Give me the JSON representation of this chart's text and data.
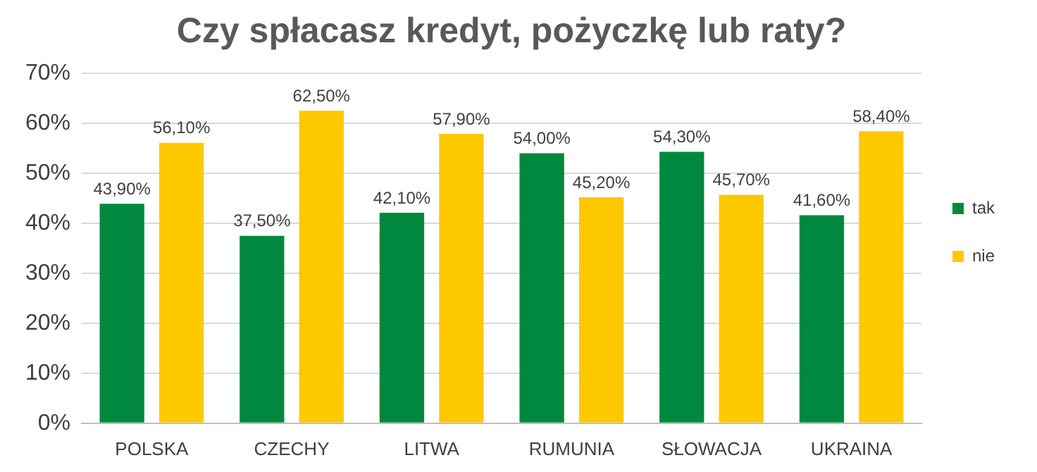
{
  "chart_data": {
    "type": "bar",
    "title": "Czy spłacasz kredyt, pożyczkę lub raty?",
    "categories": [
      "POLSKA",
      "CZECHY",
      "LITWA",
      "RUMUNIA",
      "SŁOWACJA",
      "UKRAINA"
    ],
    "series": [
      {
        "name": "tak",
        "color": "#00893e",
        "values": [
          43.9,
          37.5,
          42.1,
          54.0,
          54.3,
          41.6
        ],
        "value_labels": [
          "43,90%",
          "37,50%",
          "42,10%",
          "54,00%",
          "54,30%",
          "41,60%"
        ]
      },
      {
        "name": "nie",
        "color": "#ffc900",
        "values": [
          56.1,
          62.5,
          57.9,
          45.2,
          45.7,
          58.4
        ],
        "value_labels": [
          "56,10%",
          "62,50%",
          "57,90%",
          "45,20%",
          "45,70%",
          "58,40%"
        ]
      }
    ],
    "ylim": [
      0,
      70
    ],
    "yticks": [
      {
        "value": 0,
        "label": "0%"
      },
      {
        "value": 10,
        "label": "10%"
      },
      {
        "value": 20,
        "label": "20%"
      },
      {
        "value": 30,
        "label": "30%"
      },
      {
        "value": 40,
        "label": "40%"
      },
      {
        "value": 50,
        "label": "50%"
      },
      {
        "value": 60,
        "label": "60%"
      },
      {
        "value": 70,
        "label": "70%"
      }
    ],
    "grid": "y",
    "legend": "right"
  }
}
